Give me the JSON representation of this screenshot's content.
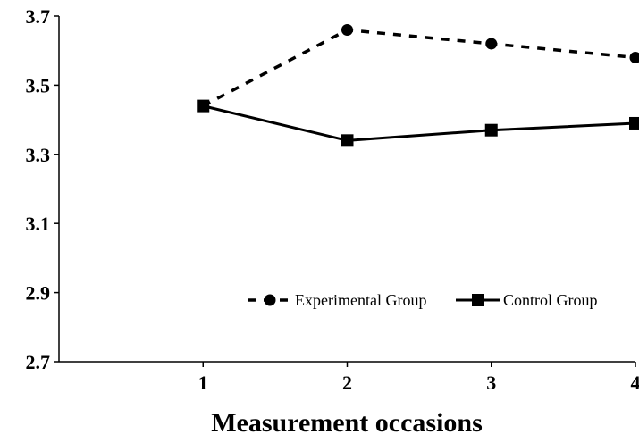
{
  "chart_data": {
    "type": "line",
    "title": "",
    "xlabel": "Measurement  occasions",
    "ylabel": "",
    "x": [
      1,
      2,
      3,
      4
    ],
    "x_tick_labels": [
      "1",
      "2",
      "3",
      "4"
    ],
    "ylim": [
      2.7,
      3.7
    ],
    "y_ticks": [
      2.7,
      2.9,
      3.1,
      3.3,
      3.5,
      3.7
    ],
    "y_tick_labels": [
      "2.7",
      "2.9",
      "3.1",
      "3.3",
      "3.5",
      "3.7"
    ],
    "grid": false,
    "legend_position": "bottom-right",
    "series": [
      {
        "name": "Experimental Group",
        "values": [
          3.44,
          3.66,
          3.62,
          3.58
        ],
        "line_style": "dashed",
        "marker": "circle",
        "color": "#000000"
      },
      {
        "name": "Control Group",
        "values": [
          3.44,
          3.34,
          3.37,
          3.39
        ],
        "line_style": "solid",
        "marker": "square",
        "color": "#000000"
      }
    ]
  }
}
